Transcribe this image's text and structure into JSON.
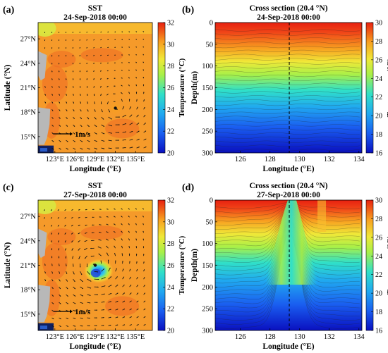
{
  "figure": {
    "panels": [
      {
        "id": "a",
        "panel_label": "(a)",
        "title_line1": "SST",
        "title_line2": "24-Sep-2018 00:00",
        "xlabel": "Longitude (°E)",
        "ylabel": "Latitude (°N)",
        "x_ticks": [
          "123°E",
          "126°E",
          "129°E",
          "132°E",
          "135°E"
        ],
        "y_ticks": [
          "15°N",
          "18°N",
          "21°N",
          "24°N",
          "27°N"
        ],
        "colorbar_label": "Temperature (°C)",
        "colorbar_ticks": [
          "20",
          "22",
          "24",
          "26",
          "28",
          "30",
          "32"
        ],
        "vector_scale_label": "1m/s"
      },
      {
        "id": "b",
        "panel_label": "(b)",
        "title_line1": "Cross section (20.4 °N)",
        "title_line2": "24-Sep-2018 00:00",
        "xlabel": "Longitude (°E)",
        "ylabel": "Depth(m)",
        "x_ticks": [
          "126",
          "128",
          "130",
          "132",
          "134"
        ],
        "y_ticks": [
          "0",
          "50",
          "100",
          "150",
          "200",
          "250",
          "300"
        ],
        "colorbar_label": "Temperature (°C)",
        "colorbar_ticks": [
          "16",
          "18",
          "20",
          "22",
          "24",
          "26",
          "28",
          "30"
        ]
      },
      {
        "id": "c",
        "panel_label": "(c)",
        "title_line1": "SST",
        "title_line2": "27-Sep-2018 00:00",
        "xlabel": "Longitude (°E)",
        "ylabel": "Latitude (°N)",
        "x_ticks": [
          "123°E",
          "126°E",
          "129°E",
          "132°E",
          "135°E"
        ],
        "y_ticks": [
          "15°N",
          "18°N",
          "21°N",
          "24°N",
          "27°N"
        ],
        "colorbar_label": "Temperature (°C)",
        "colorbar_ticks": [
          "20",
          "22",
          "24",
          "26",
          "28",
          "30",
          "32"
        ],
        "vector_scale_label": "1m/s"
      },
      {
        "id": "d",
        "panel_label": "(d)",
        "title_line1": "Cross section (20.4 °N)",
        "title_line2": "27-Sep-2018 00:00",
        "xlabel": "Longitude (°E)",
        "ylabel": "Depth(m)",
        "x_ticks": [
          "126",
          "128",
          "130",
          "132",
          "134"
        ],
        "y_ticks": [
          "0",
          "50",
          "100",
          "150",
          "200",
          "250",
          "300"
        ],
        "colorbar_label": "Temperature (°C)",
        "colorbar_ticks": [
          "16",
          "18",
          "20",
          "22",
          "24",
          "26",
          "28",
          "30"
        ]
      }
    ]
  },
  "chart_data": [
    {
      "type": "heatmap",
      "panel": "a",
      "title": "SST 24-Sep-2018 00:00",
      "xlabel": "Longitude (°E)",
      "ylabel": "Latitude (°N)",
      "xlim": [
        120.5,
        137.5
      ],
      "ylim": [
        13,
        29
      ],
      "colorbar_range": [
        20,
        32
      ],
      "background_sst": 29.5,
      "cold_spot": {
        "lon": 132,
        "lat": 18.5,
        "sst": 28.5
      },
      "typhoon_center": {
        "lon": 132,
        "lat": 18.5
      }
    },
    {
      "type": "heatmap",
      "panel": "b",
      "title": "Cross section (20.4 °N) 24-Sep-2018 00:00",
      "xlabel": "Longitude (°E)",
      "ylabel": "Depth(m)",
      "xlim": [
        124.3,
        134.2
      ],
      "ylim": [
        0,
        300
      ],
      "colorbar_range": [
        16,
        30
      ],
      "dashed_line_lon": 129.3,
      "depth_profile": {
        "depth": [
          0,
          40,
          60,
          80,
          100,
          120,
          150,
          180,
          200,
          250,
          300
        ],
        "temperature": [
          29.8,
          29.2,
          28.0,
          26.8,
          25.5,
          24.0,
          22.5,
          21.0,
          19.5,
          17.5,
          16.0
        ]
      }
    },
    {
      "type": "heatmap",
      "panel": "c",
      "title": "SST 27-Sep-2018 00:00",
      "xlabel": "Longitude (°E)",
      "ylabel": "Latitude (°N)",
      "xlim": [
        120.5,
        137.5
      ],
      "ylim": [
        13,
        29
      ],
      "colorbar_range": [
        20,
        32
      ],
      "background_sst": 29.5,
      "cold_spot": {
        "lon": 129.5,
        "lat": 20.3,
        "sst": 24
      },
      "typhoon_center": {
        "lon": 129,
        "lat": 21
      }
    },
    {
      "type": "heatmap",
      "panel": "d",
      "title": "Cross section (20.4 °N) 27-Sep-2018 00:00",
      "xlabel": "Longitude (°E)",
      "ylabel": "Depth(m)",
      "xlim": [
        124.3,
        134.2
      ],
      "ylim": [
        0,
        300
      ],
      "colorbar_range": [
        16,
        30
      ],
      "dashed_line_lon": 129.3,
      "upwelling": {
        "center_lon": 129.3,
        "surface_temperature_min": 26
      }
    }
  ]
}
